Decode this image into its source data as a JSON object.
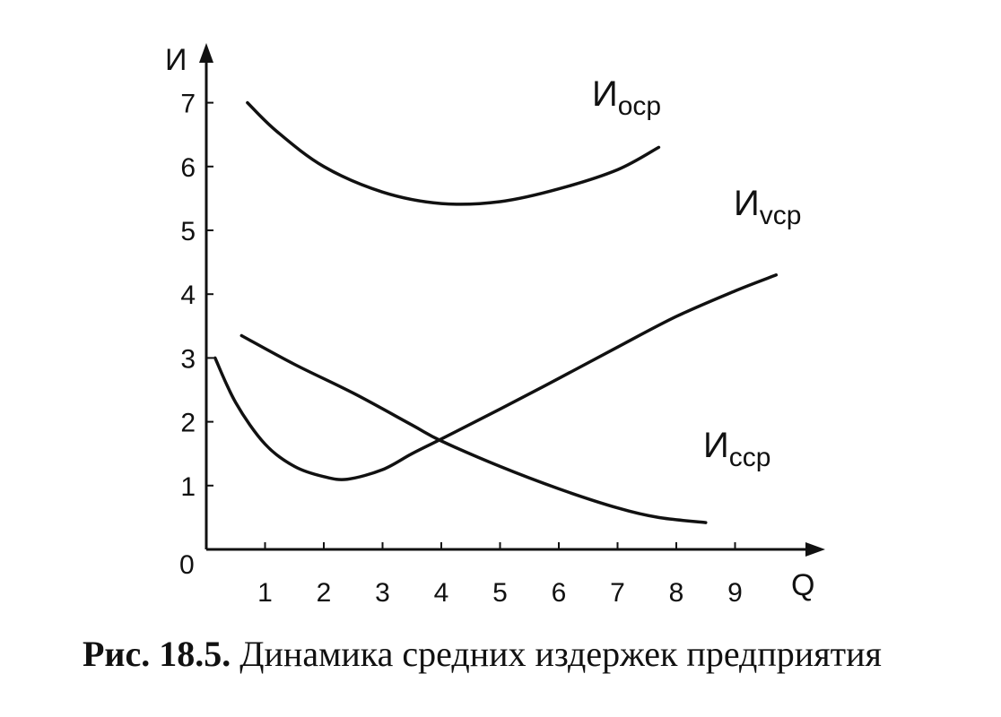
{
  "chart_data": {
    "type": "line",
    "title": "",
    "ylabel": "И",
    "xlabel": "Q",
    "origin_label": "0",
    "x_ticks": [
      "1",
      "2",
      "3",
      "4",
      "5",
      "6",
      "7",
      "8",
      "9"
    ],
    "y_ticks": [
      "1",
      "2",
      "3",
      "4",
      "5",
      "6",
      "7"
    ],
    "xlim": [
      0,
      10
    ],
    "ylim": [
      0,
      8
    ],
    "grid": false,
    "legend": "none",
    "series": [
      {
        "key": "osr",
        "name": "И",
        "name_sub": "оср",
        "points": [
          [
            0.7,
            7.0
          ],
          [
            1.2,
            6.55
          ],
          [
            2.0,
            6.0
          ],
          [
            3.0,
            5.6
          ],
          [
            4.0,
            5.42
          ],
          [
            5.0,
            5.45
          ],
          [
            6.0,
            5.65
          ],
          [
            7.0,
            5.95
          ],
          [
            7.7,
            6.3
          ]
        ]
      },
      {
        "key": "vsr",
        "name": "И",
        "name_sub": "vср",
        "points": [
          [
            0.15,
            3.0
          ],
          [
            0.5,
            2.3
          ],
          [
            1.0,
            1.65
          ],
          [
            1.5,
            1.3
          ],
          [
            2.0,
            1.14
          ],
          [
            2.4,
            1.1
          ],
          [
            3.0,
            1.25
          ],
          [
            3.5,
            1.5
          ],
          [
            4.0,
            1.73
          ],
          [
            5.0,
            2.2
          ],
          [
            6.0,
            2.68
          ],
          [
            7.0,
            3.17
          ],
          [
            8.0,
            3.65
          ],
          [
            9.0,
            4.05
          ],
          [
            9.7,
            4.3
          ]
        ]
      },
      {
        "key": "csr",
        "name": "И",
        "name_sub": "сср",
        "points": [
          [
            0.6,
            3.35
          ],
          [
            1.5,
            2.9
          ],
          [
            2.5,
            2.45
          ],
          [
            3.5,
            1.95
          ],
          [
            4.0,
            1.7
          ],
          [
            5.0,
            1.3
          ],
          [
            6.0,
            0.95
          ],
          [
            7.0,
            0.65
          ],
          [
            7.7,
            0.5
          ],
          [
            8.5,
            0.42
          ]
        ]
      }
    ]
  },
  "caption": {
    "bold": "Рис. 18.5.",
    "text": " Динамика средних издержек предприятия"
  }
}
